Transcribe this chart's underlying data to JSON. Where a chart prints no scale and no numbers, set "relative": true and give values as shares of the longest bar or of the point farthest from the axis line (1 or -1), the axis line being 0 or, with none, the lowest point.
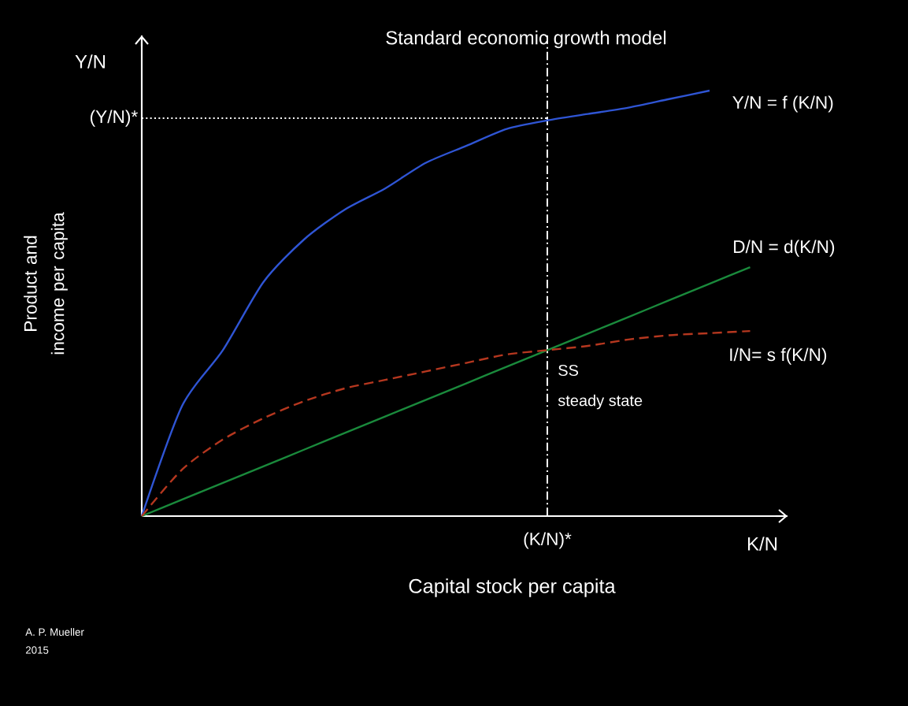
{
  "chart_data": {
    "type": "line",
    "title": "Standard economic growth model",
    "xlabel": "Capital stock per capita",
    "ylabel": "Product and income per capita",
    "relative": true,
    "categories": [
      null,
      null,
      null,
      null,
      null,
      null,
      null,
      null,
      null,
      null,
      null,
      null,
      null,
      null,
      null,
      null
    ],
    "series": [
      {
        "name": "Y/N = f (K/N)",
        "color": "#2f55d4",
        "line_style": "solid",
        "values": [
          0,
          0.26,
          0.39,
          0.55,
          0.65,
          0.72,
          0.77,
          0.83,
          0.87,
          0.91,
          0.93,
          0.945,
          0.96,
          0.98,
          1.0,
          null
        ]
      },
      {
        "name": "D/N = d(K/N)",
        "color": "#1a8a3c",
        "line_style": "solid",
        "values": [
          0,
          0.039,
          0.078,
          0.117,
          0.156,
          0.195,
          0.234,
          0.273,
          0.312,
          0.351,
          0.39,
          0.429,
          0.468,
          0.507,
          0.546,
          0.585
        ]
      },
      {
        "name": "I/N= s f(K/N)",
        "color": "#b5371f",
        "line_style": "dashed",
        "values": [
          0,
          0.11,
          0.18,
          0.23,
          0.27,
          0.3,
          0.32,
          0.34,
          0.36,
          0.38,
          0.39,
          0.4,
          0.415,
          0.425,
          0.43,
          0.435
        ]
      }
    ],
    "ref_lines": [
      {
        "axis": "y",
        "value": 0.935,
        "label": "(Y/N)*",
        "line_style": "dotted"
      }
    ],
    "annotations": [
      "Y/N",
      "K/N",
      "SS",
      "steady state",
      "A. P. Mueller",
      "2015",
      "(K/N)*"
    ]
  }
}
